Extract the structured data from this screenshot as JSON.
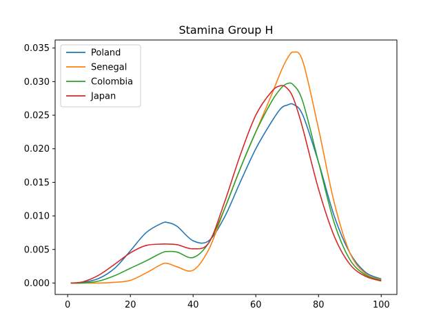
{
  "chart_data": {
    "type": "line",
    "title": "Stamina Group H",
    "xlabel": "",
    "ylabel": "",
    "xlim": [
      -4.0,
      105.0
    ],
    "ylim": [
      -0.0017,
      0.0362
    ],
    "xticks": [
      0,
      20,
      40,
      60,
      80,
      100
    ],
    "xtick_labels": [
      "0",
      "20",
      "40",
      "60",
      "80",
      "100"
    ],
    "yticks": [
      0.0,
      0.005,
      0.01,
      0.015,
      0.02,
      0.025,
      0.03,
      0.035
    ],
    "ytick_labels": [
      "0.000",
      "0.005",
      "0.010",
      "0.015",
      "0.020",
      "0.025",
      "0.030",
      "0.035"
    ],
    "grid": false,
    "legend_position": "upper-left",
    "x": [
      1,
      5,
      10,
      15,
      20,
      25,
      30,
      32,
      35,
      40,
      45,
      50,
      55,
      60,
      65,
      68,
      70,
      72,
      75,
      80,
      85,
      90,
      95,
      100
    ],
    "series": [
      {
        "name": "Poland",
        "color": "#1f77b4",
        "values": [
          0.0,
          0.0001,
          0.0007,
          0.0022,
          0.0048,
          0.0075,
          0.0089,
          0.009,
          0.0084,
          0.0063,
          0.0063,
          0.0098,
          0.015,
          0.02,
          0.024,
          0.026,
          0.0265,
          0.0266,
          0.025,
          0.018,
          0.01,
          0.0045,
          0.0016,
          0.0006
        ]
      },
      {
        "name": "Senegal",
        "color": "#ff7f0e",
        "values": [
          0.0,
          0.0,
          0.0,
          0.0001,
          0.0004,
          0.0015,
          0.0028,
          0.0029,
          0.0024,
          0.0019,
          0.005,
          0.011,
          0.017,
          0.0225,
          0.028,
          0.0315,
          0.0334,
          0.0344,
          0.033,
          0.023,
          0.012,
          0.0045,
          0.0014,
          0.0005
        ]
      },
      {
        "name": "Colombia",
        "color": "#2ca02c",
        "values": [
          0.0,
          0.0,
          0.0003,
          0.0011,
          0.0022,
          0.0033,
          0.0045,
          0.0047,
          0.0046,
          0.0038,
          0.006,
          0.011,
          0.017,
          0.0225,
          0.027,
          0.029,
          0.0297,
          0.0295,
          0.027,
          0.018,
          0.009,
          0.0035,
          0.0012,
          0.0004
        ]
      },
      {
        "name": "Japan",
        "color": "#d62728",
        "values": [
          0.0,
          0.0002,
          0.0012,
          0.0028,
          0.0045,
          0.0056,
          0.0058,
          0.0058,
          0.0057,
          0.0051,
          0.006,
          0.012,
          0.019,
          0.025,
          0.0285,
          0.0294,
          0.029,
          0.0275,
          0.023,
          0.014,
          0.007,
          0.0028,
          0.001,
          0.0003
        ]
      }
    ]
  }
}
